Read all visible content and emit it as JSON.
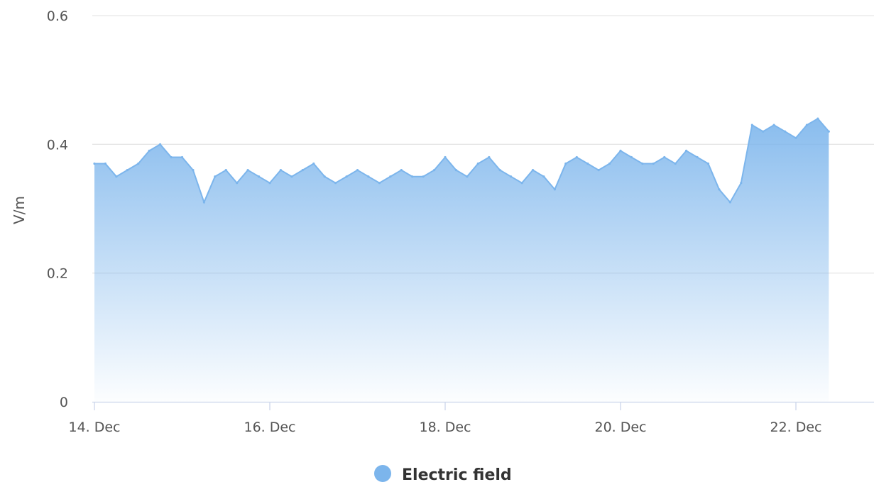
{
  "chart_data": {
    "type": "area",
    "title": "",
    "xlabel": "",
    "ylabel": "V/m",
    "ylim": [
      0,
      0.6
    ],
    "yticks": [
      0,
      0.2,
      0.4,
      0.6
    ],
    "ytick_labels": [
      "0",
      "0.2",
      "0.4",
      "0.6"
    ],
    "xlim": [
      "2023-12-14 00:00",
      "2023-12-23 00:00"
    ],
    "xticks": [
      "2023-12-14",
      "2023-12-16",
      "2023-12-18",
      "2023-12-20",
      "2023-12-22"
    ],
    "xtick_labels": [
      "14. Dec",
      "16. Dec",
      "18. Dec",
      "20. Dec",
      "22. Dec"
    ],
    "grid": true,
    "legend_position": "bottom-center",
    "series": [
      {
        "name": "Electric field",
        "color": "#7cb5ec",
        "x": [
          "2023-12-14 00:00",
          "2023-12-14 03:00",
          "2023-12-14 06:00",
          "2023-12-14 09:00",
          "2023-12-14 12:00",
          "2023-12-14 15:00",
          "2023-12-14 18:00",
          "2023-12-14 21:00",
          "2023-12-15 00:00",
          "2023-12-15 03:00",
          "2023-12-15 06:00",
          "2023-12-15 09:00",
          "2023-12-15 12:00",
          "2023-12-15 15:00",
          "2023-12-15 18:00",
          "2023-12-15 21:00",
          "2023-12-16 00:00",
          "2023-12-16 03:00",
          "2023-12-16 06:00",
          "2023-12-16 09:00",
          "2023-12-16 12:00",
          "2023-12-16 15:00",
          "2023-12-16 18:00",
          "2023-12-16 21:00",
          "2023-12-17 00:00",
          "2023-12-17 03:00",
          "2023-12-17 06:00",
          "2023-12-17 09:00",
          "2023-12-17 12:00",
          "2023-12-17 15:00",
          "2023-12-17 18:00",
          "2023-12-17 21:00",
          "2023-12-18 00:00",
          "2023-12-18 03:00",
          "2023-12-18 06:00",
          "2023-12-18 09:00",
          "2023-12-18 12:00",
          "2023-12-18 15:00",
          "2023-12-18 18:00",
          "2023-12-18 21:00",
          "2023-12-19 00:00",
          "2023-12-19 03:00",
          "2023-12-19 06:00",
          "2023-12-19 09:00",
          "2023-12-19 12:00",
          "2023-12-19 15:00",
          "2023-12-19 18:00",
          "2023-12-19 21:00",
          "2023-12-20 00:00",
          "2023-12-20 03:00",
          "2023-12-20 06:00",
          "2023-12-20 09:00",
          "2023-12-20 12:00",
          "2023-12-20 15:00",
          "2023-12-20 18:00",
          "2023-12-20 21:00",
          "2023-12-21 00:00",
          "2023-12-21 03:00",
          "2023-12-21 06:00",
          "2023-12-21 09:00",
          "2023-12-21 12:00",
          "2023-12-21 15:00",
          "2023-12-21 18:00",
          "2023-12-21 21:00",
          "2023-12-22 00:00",
          "2023-12-22 03:00",
          "2023-12-22 06:00",
          "2023-12-22 09:00"
        ],
        "values": [
          0.37,
          0.37,
          0.35,
          0.36,
          0.37,
          0.39,
          0.4,
          0.38,
          0.38,
          0.36,
          0.31,
          0.35,
          0.36,
          0.34,
          0.36,
          0.35,
          0.34,
          0.36,
          0.35,
          0.36,
          0.37,
          0.35,
          0.34,
          0.35,
          0.36,
          0.35,
          0.34,
          0.35,
          0.36,
          0.35,
          0.35,
          0.36,
          0.38,
          0.36,
          0.35,
          0.37,
          0.38,
          0.36,
          0.35,
          0.34,
          0.36,
          0.35,
          0.33,
          0.37,
          0.38,
          0.37,
          0.36,
          0.37,
          0.39,
          0.38,
          0.37,
          0.37,
          0.38,
          0.37,
          0.39,
          0.38,
          0.37,
          0.33,
          0.31,
          0.34,
          0.43,
          0.42,
          0.43,
          0.42,
          0.41,
          0.43,
          0.44,
          0.42
        ]
      }
    ]
  }
}
